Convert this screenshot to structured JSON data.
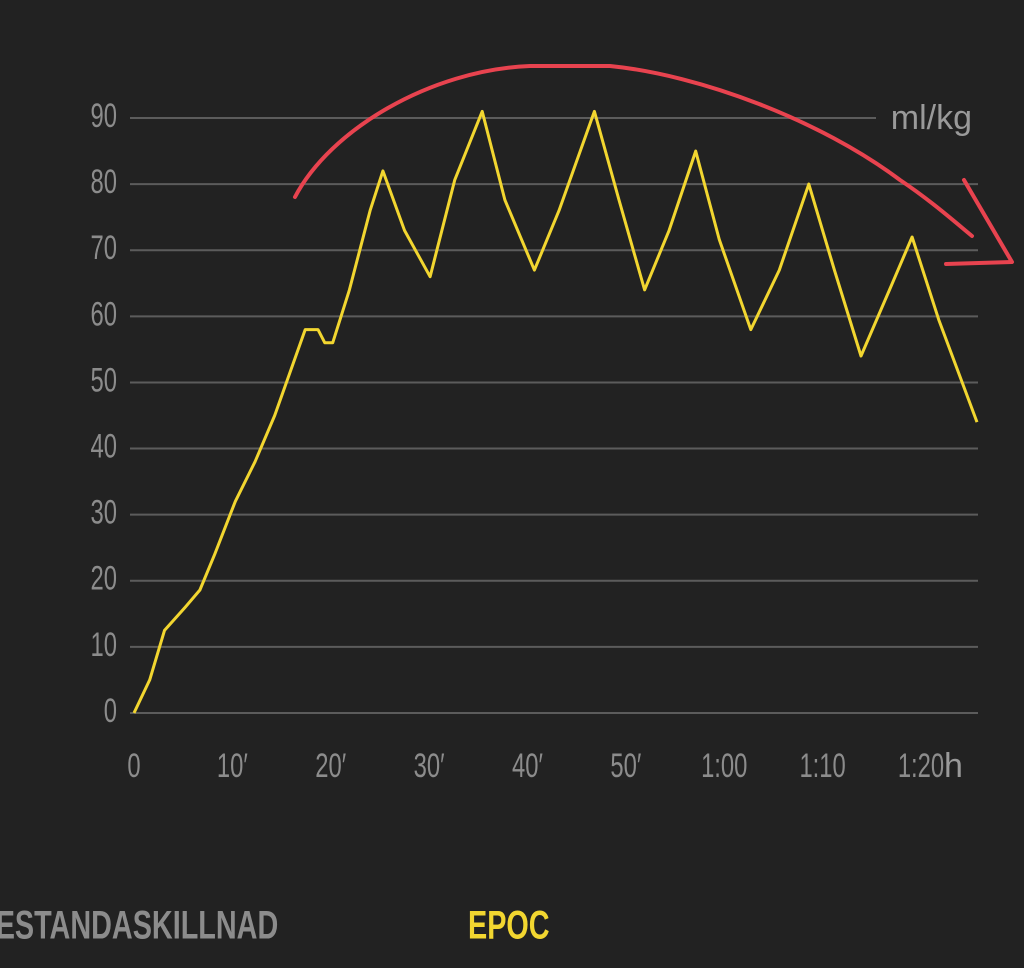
{
  "chart_data": {
    "type": "line",
    "x": [
      0,
      1.6,
      3.1,
      5.2,
      6.7,
      8.2,
      10.3,
      12.3,
      14.3,
      17.4,
      18.7,
      19.4,
      20.2,
      21.9,
      24,
      25.3,
      27.5,
      30.1,
      32.6,
      35.4,
      37.7,
      40.7,
      43.2,
      46.8,
      49.3,
      51.9,
      54.4,
      57.1,
      59.5,
      62.7,
      65.6,
      68.6,
      71.2,
      73.9,
      76.8,
      79.1,
      81.8,
      85.7
    ],
    "values": [
      0,
      5,
      12.5,
      16,
      18.6,
      24,
      32,
      38,
      45,
      58,
      58,
      56,
      56,
      64,
      76,
      82,
      73,
      66,
      80.6,
      91,
      77.6,
      67,
      76,
      91,
      77.6,
      64,
      73,
      85,
      71.6,
      58,
      67,
      80,
      67,
      54,
      64,
      72,
      59.5,
      44
    ],
    "color": "#f2d630",
    "xlim": [
      0,
      86
    ],
    "xticks": [
      0,
      {
        "value": 10,
        "label": "10′"
      },
      {
        "value": 20,
        "label": "20′"
      },
      {
        "value": 30,
        "label": "30′"
      },
      {
        "value": 40,
        "label": "40′"
      },
      {
        "value": 50,
        "label": "50′"
      },
      {
        "value": 60,
        "label": "1:00"
      },
      {
        "value": 70,
        "label": "1:10"
      },
      {
        "value": 80,
        "label": "1:20"
      }
    ],
    "ylim": [
      0,
      90
    ],
    "yticks": [
      0,
      10,
      20,
      30,
      40,
      50,
      60,
      70,
      80,
      90
    ],
    "grid": true,
    "x_unit": "h",
    "y_unit": "ml/kg"
  },
  "tabs": [
    "ESTANDASKILLNAD",
    "EPOC"
  ]
}
